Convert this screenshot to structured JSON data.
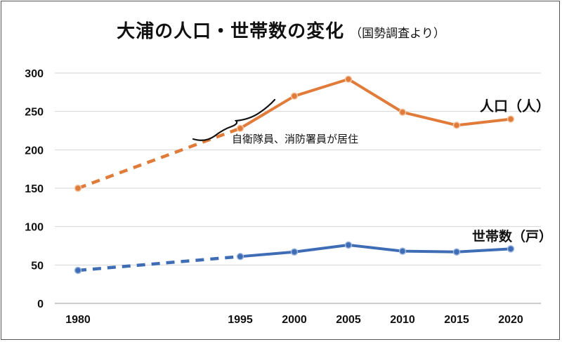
{
  "chart_data": {
    "type": "line",
    "title": "大浦の人口・世帯数の変化",
    "subtitle": "（国勢調査より）",
    "x": [
      1980,
      1995,
      2000,
      2005,
      2010,
      2015,
      2020
    ],
    "x_tick_labels": [
      "1980",
      "1995",
      "2000",
      "2005",
      "2010",
      "2015",
      "2020"
    ],
    "ylim": [
      0,
      300
    ],
    "y_ticks": [
      0,
      50,
      100,
      150,
      200,
      250,
      300
    ],
    "grid": true,
    "series": [
      {
        "name": "人口（人）",
        "color": "#E07B39",
        "values": [
          150,
          228,
          270,
          292,
          249,
          232,
          240
        ],
        "dashed_until_index": 1
      },
      {
        "name": "世帯数（戸）",
        "color": "#3F6DB5",
        "values": [
          43,
          61,
          67,
          76,
          68,
          67,
          71
        ],
        "dashed_until_index": 1
      }
    ],
    "annotations": [
      {
        "text": "自衛隊員、消防署員が居住",
        "spans": [
          1995,
          2000
        ]
      }
    ]
  }
}
